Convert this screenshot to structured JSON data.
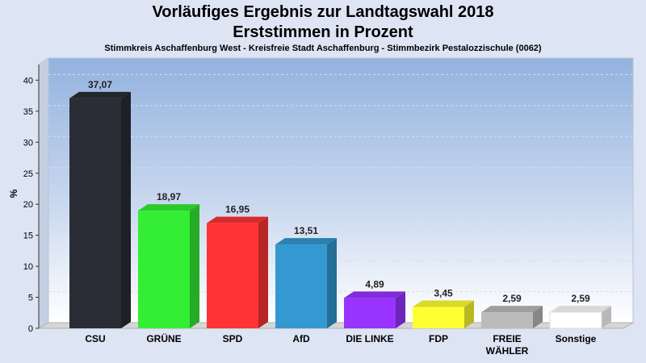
{
  "chart_data": {
    "type": "bar",
    "title": "Vorläufiges Ergebnis zur Landtagswahl 2018",
    "subtitle": "Erststimmen in Prozent",
    "subtitle2": "Stimmkreis Aschaffenburg West - Kreisfreie Stadt Aschaffenburg - Stimmbezirk Pestalozzischule (0062)",
    "xlabel": "",
    "ylabel": "%",
    "ylim": [
      0,
      40
    ],
    "yticks": [
      0,
      5,
      10,
      15,
      20,
      25,
      30,
      35,
      40
    ],
    "grid": true,
    "categories": [
      "CSU",
      "GRÜNE",
      "SPD",
      "AfD",
      "DIE LINKE",
      "FDP",
      "FREIE WÄHLER",
      "Sonstige"
    ],
    "category_lines": [
      [
        "CSU"
      ],
      [
        "GRÜNE"
      ],
      [
        "SPD"
      ],
      [
        "AfD"
      ],
      [
        "DIE LINKE"
      ],
      [
        "FDP"
      ],
      [
        "FREIE",
        "WÄHLER"
      ],
      [
        "Sonstige"
      ]
    ],
    "values": [
      37.07,
      18.97,
      16.95,
      13.51,
      4.89,
      3.45,
      2.59,
      2.59
    ],
    "value_labels": [
      "37,07",
      "18,97",
      "16,95",
      "13,51",
      "4,89",
      "3,45",
      "2,59",
      "2,59"
    ],
    "colors": [
      "#2a2d35",
      "#33ee33",
      "#ff3333",
      "#3399d0",
      "#9933ff",
      "#ffff33",
      "#bbbbbb",
      "#ffffff"
    ]
  }
}
